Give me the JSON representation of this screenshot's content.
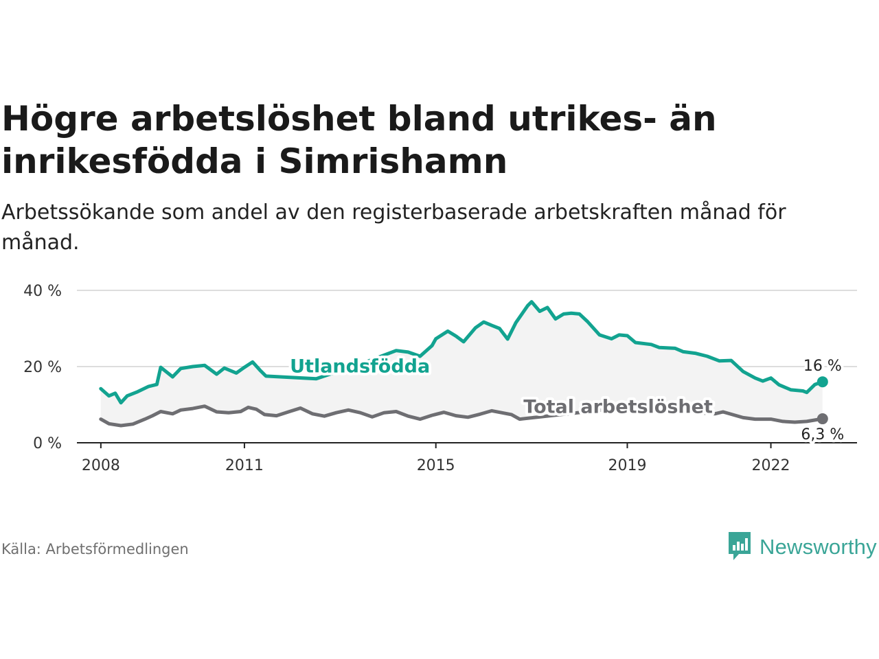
{
  "title": "Högre arbetslöshet bland utrikes- än inrikesfödda i Simrishamn",
  "subtitle": "Arbetssökande som andel av den registerbaserade arbetskraften månad för månad.",
  "source": "Källa: Arbetsförmedlingen",
  "brand": {
    "name": "Newsworthy",
    "icon": "newsworthy-logo-icon"
  },
  "colors": {
    "foreign": "#12a390",
    "total": "#6e6e72",
    "band": "#f3f3f3",
    "grid": "#dddddd",
    "axis": "#222222"
  },
  "chart_data": {
    "type": "line",
    "title": "Högre arbetslöshet bland utrikes- än inrikesfödda i Simrishamn",
    "ylabel": "",
    "xlabel": "",
    "ylim": [
      0,
      40
    ],
    "xlim": [
      2007.5,
      2023.8
    ],
    "x_ticks": [
      2008,
      2011,
      2015,
      2019,
      2022
    ],
    "x_tick_labels": [
      "2008",
      "2011",
      "2015",
      "2019",
      "2022"
    ],
    "y_ticks": [
      0,
      20,
      40
    ],
    "y_tick_labels": [
      "0 %",
      "20 %",
      "40 %"
    ],
    "series": [
      {
        "name": "Utlandsfödda",
        "label": "Utlandsfödda",
        "end_label": "16 %",
        "points": [
          [
            2008.0,
            14.2
          ],
          [
            2008.17,
            12.3
          ],
          [
            2008.3,
            13.0
          ],
          [
            2008.42,
            10.5
          ],
          [
            2008.55,
            12.3
          ],
          [
            2008.75,
            13.3
          ],
          [
            2009.0,
            14.8
          ],
          [
            2009.17,
            15.3
          ],
          [
            2009.25,
            19.8
          ],
          [
            2009.5,
            17.3
          ],
          [
            2009.67,
            19.5
          ],
          [
            2009.92,
            20.0
          ],
          [
            2010.17,
            20.3
          ],
          [
            2010.42,
            18.0
          ],
          [
            2010.58,
            19.6
          ],
          [
            2010.83,
            18.3
          ],
          [
            2011.0,
            19.8
          ],
          [
            2011.17,
            21.2
          ],
          [
            2011.33,
            19.0
          ],
          [
            2011.45,
            17.5
          ],
          [
            2012.5,
            16.8
          ],
          [
            2013.5,
            21.0
          ],
          [
            2014.17,
            24.2
          ],
          [
            2014.42,
            23.8
          ],
          [
            2014.67,
            22.7
          ],
          [
            2014.92,
            25.5
          ],
          [
            2015.0,
            27.3
          ],
          [
            2015.25,
            29.3
          ],
          [
            2015.42,
            28.0
          ],
          [
            2015.58,
            26.5
          ],
          [
            2015.83,
            30.2
          ],
          [
            2016.0,
            31.7
          ],
          [
            2016.17,
            30.8
          ],
          [
            2016.33,
            30.0
          ],
          [
            2016.5,
            27.2
          ],
          [
            2016.67,
            31.5
          ],
          [
            2016.92,
            36.0
          ],
          [
            2017.0,
            37.0
          ],
          [
            2017.17,
            34.5
          ],
          [
            2017.33,
            35.5
          ],
          [
            2017.5,
            32.5
          ],
          [
            2017.67,
            33.8
          ],
          [
            2017.83,
            34.0
          ],
          [
            2018.0,
            33.8
          ],
          [
            2018.17,
            31.8
          ],
          [
            2018.42,
            28.3
          ],
          [
            2018.67,
            27.3
          ],
          [
            2018.83,
            28.3
          ],
          [
            2019.0,
            28.1
          ],
          [
            2019.17,
            26.3
          ],
          [
            2019.5,
            25.8
          ],
          [
            2019.67,
            25.0
          ],
          [
            2020.0,
            24.8
          ],
          [
            2020.17,
            23.9
          ],
          [
            2020.42,
            23.5
          ],
          [
            2020.67,
            22.7
          ],
          [
            2020.92,
            21.5
          ],
          [
            2021.17,
            21.6
          ],
          [
            2021.42,
            18.7
          ],
          [
            2021.67,
            17.0
          ],
          [
            2021.83,
            16.2
          ],
          [
            2022.0,
            17.0
          ],
          [
            2022.17,
            15.2
          ],
          [
            2022.42,
            13.9
          ],
          [
            2022.67,
            13.6
          ],
          [
            2022.75,
            13.2
          ],
          [
            2022.92,
            15.3
          ],
          [
            2023.08,
            16.0
          ]
        ]
      },
      {
        "name": "Total arbetslöshet",
        "label": "Total arbetslöshet",
        "end_label": "6,3 %",
        "points": [
          [
            2008.0,
            6.2
          ],
          [
            2008.17,
            5.0
          ],
          [
            2008.42,
            4.5
          ],
          [
            2008.67,
            4.9
          ],
          [
            2008.92,
            6.2
          ],
          [
            2009.08,
            7.1
          ],
          [
            2009.25,
            8.2
          ],
          [
            2009.5,
            7.6
          ],
          [
            2009.67,
            8.6
          ],
          [
            2009.92,
            9.0
          ],
          [
            2010.17,
            9.6
          ],
          [
            2010.42,
            8.1
          ],
          [
            2010.67,
            7.9
          ],
          [
            2010.92,
            8.2
          ],
          [
            2011.08,
            9.3
          ],
          [
            2011.25,
            8.8
          ],
          [
            2011.42,
            7.4
          ],
          [
            2011.67,
            7.1
          ],
          [
            2011.92,
            8.1
          ],
          [
            2012.17,
            9.1
          ],
          [
            2012.42,
            7.6
          ],
          [
            2012.67,
            7.0
          ],
          [
            2012.92,
            7.9
          ],
          [
            2013.17,
            8.6
          ],
          [
            2013.42,
            7.9
          ],
          [
            2013.67,
            6.8
          ],
          [
            2013.92,
            7.9
          ],
          [
            2014.17,
            8.2
          ],
          [
            2014.42,
            7.0
          ],
          [
            2014.67,
            6.2
          ],
          [
            2014.92,
            7.2
          ],
          [
            2015.17,
            8.0
          ],
          [
            2015.42,
            7.1
          ],
          [
            2015.67,
            6.7
          ],
          [
            2015.92,
            7.5
          ],
          [
            2016.17,
            8.4
          ],
          [
            2016.58,
            7.4
          ],
          [
            2016.75,
            6.2
          ],
          [
            2018.92,
            9.2
          ],
          [
            2019.25,
            8.7
          ],
          [
            2019.67,
            8.4
          ],
          [
            2020.0,
            8.3
          ],
          [
            2020.25,
            8.8
          ],
          [
            2020.5,
            7.9
          ],
          [
            2020.83,
            7.6
          ],
          [
            2021.0,
            8.1
          ],
          [
            2021.42,
            6.6
          ],
          [
            2021.67,
            6.2
          ],
          [
            2022.0,
            6.2
          ],
          [
            2022.25,
            5.6
          ],
          [
            2022.5,
            5.4
          ],
          [
            2022.75,
            5.6
          ],
          [
            2023.08,
            6.3
          ]
        ]
      }
    ]
  }
}
